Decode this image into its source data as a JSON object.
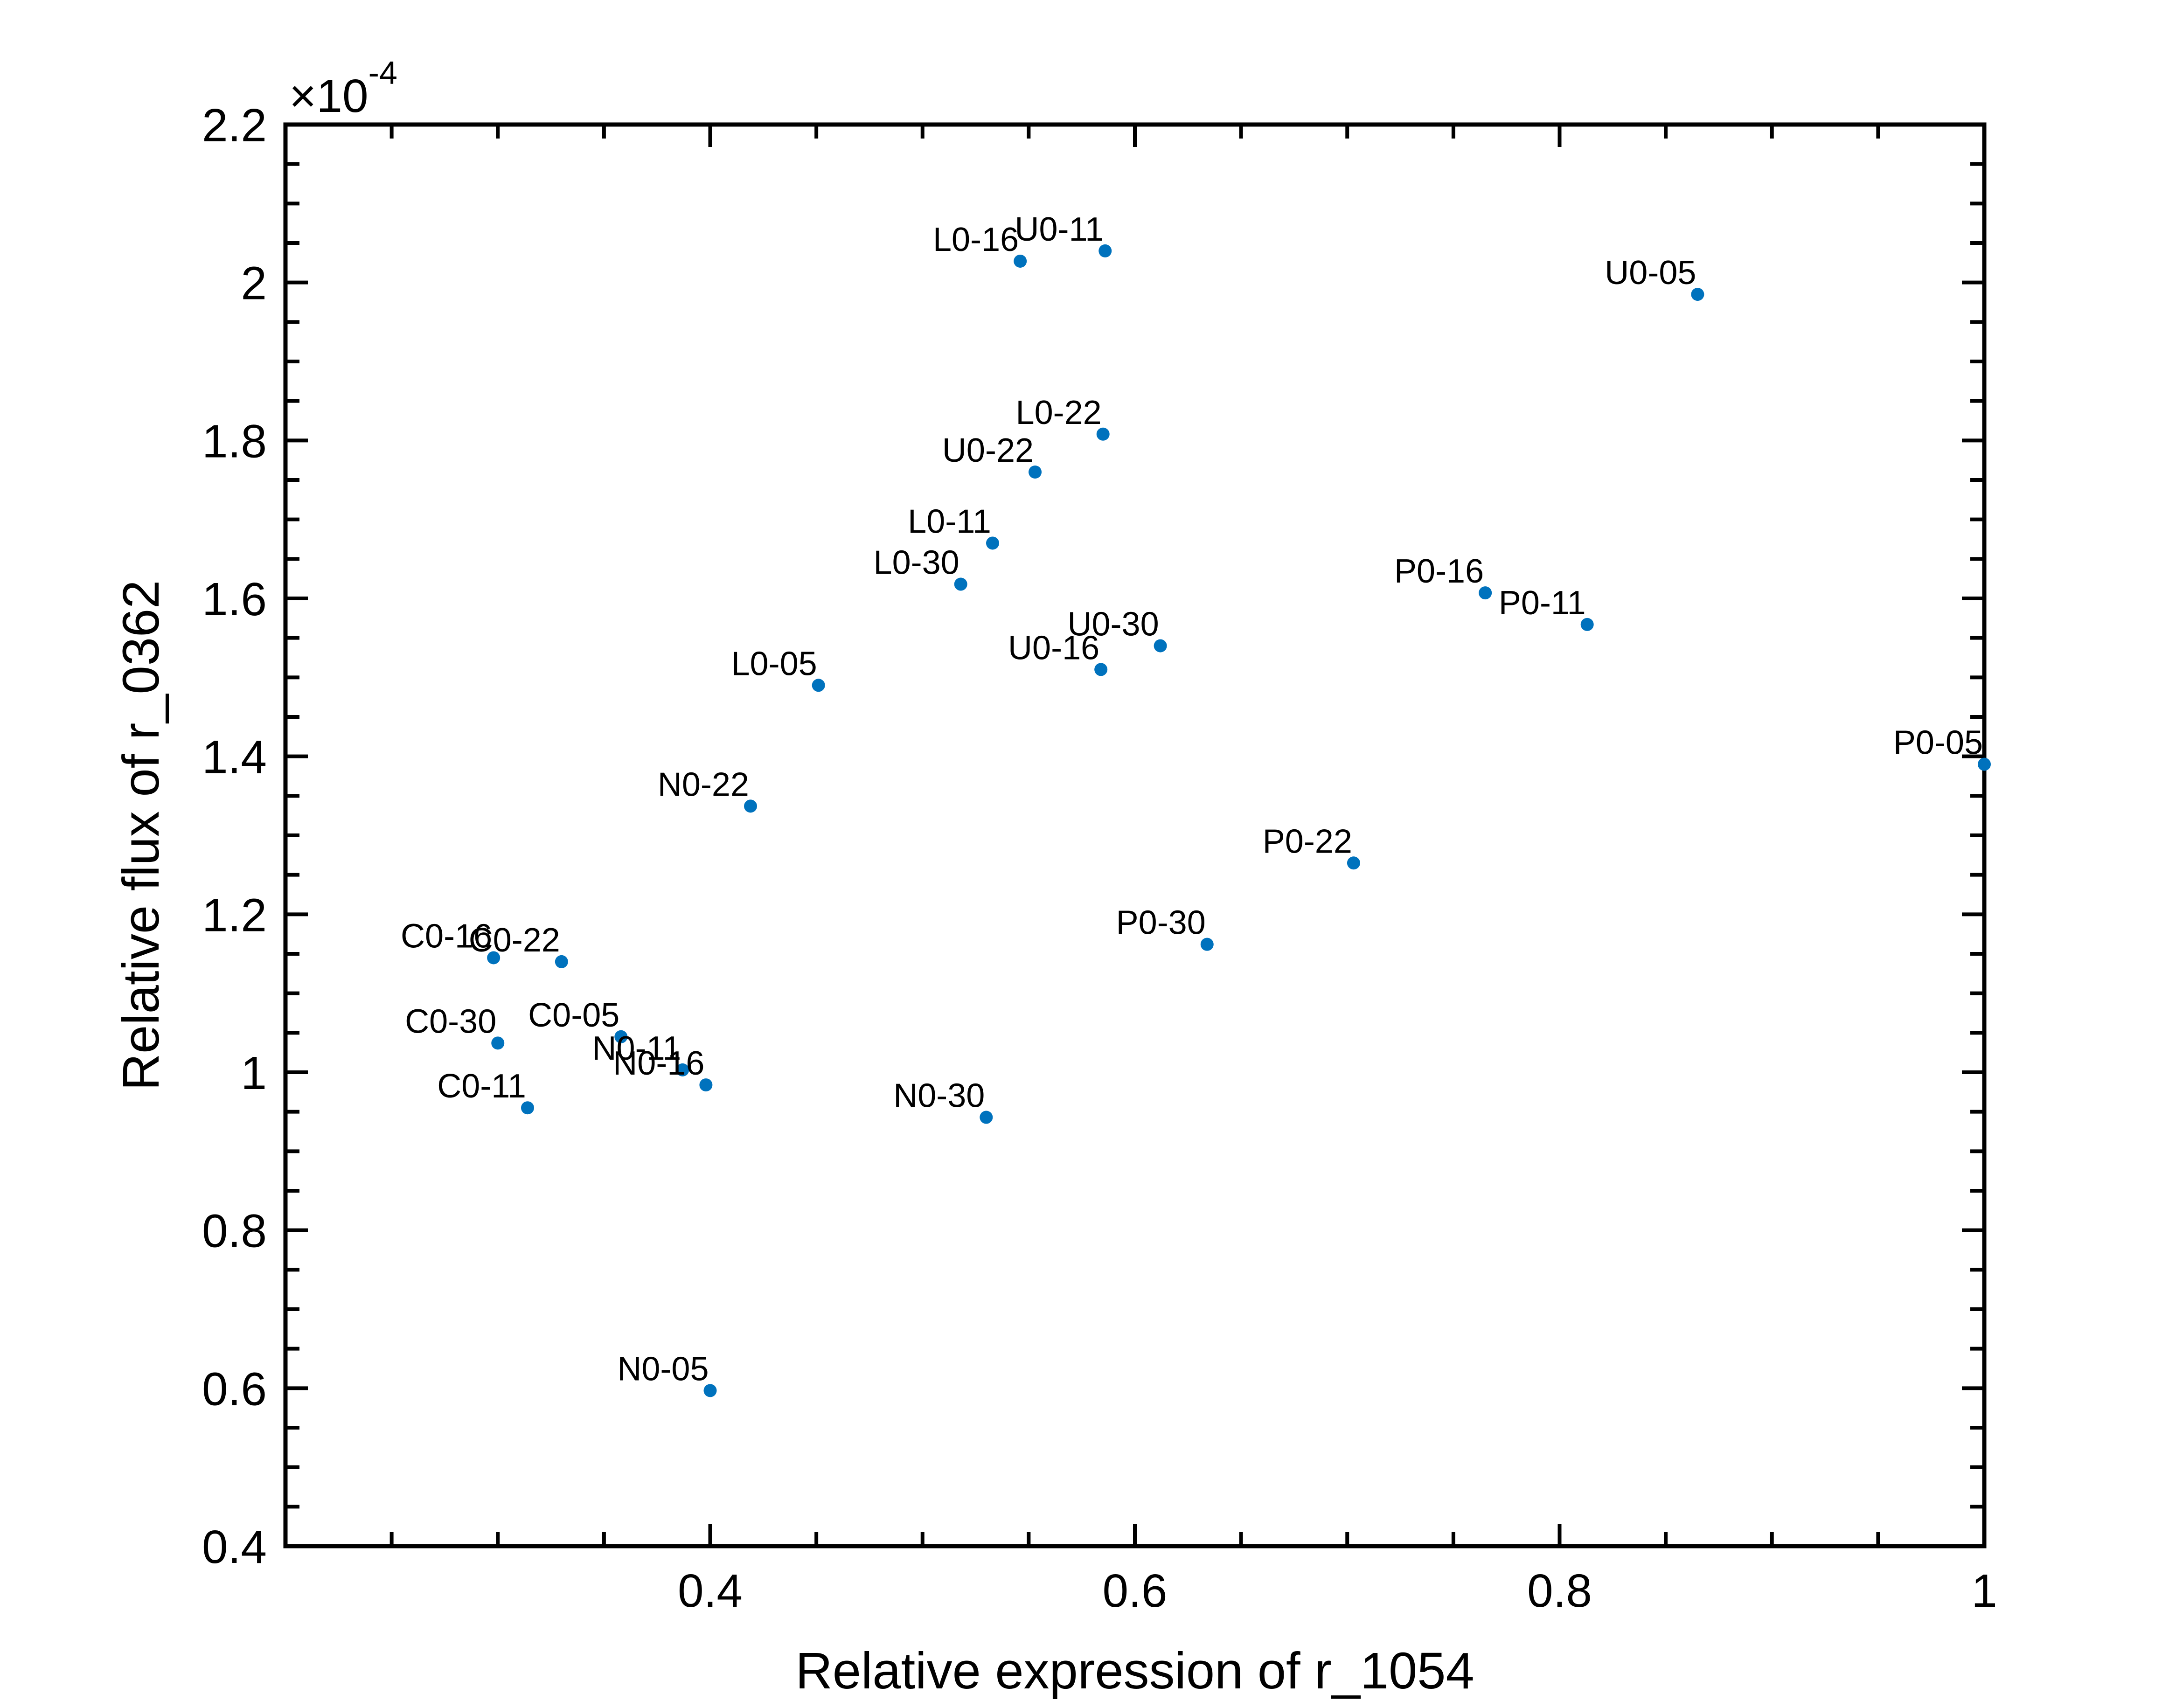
{
  "chart_data": {
    "type": "scatter",
    "title": "",
    "xlabel": "Relative expression of r_1054",
    "ylabel": "Relative flux of r_0362",
    "xlim": [
      0.2,
      1.0
    ],
    "ylim": [
      0.4,
      2.2
    ],
    "x_ticks": [
      0.4,
      0.6,
      0.8,
      1.0
    ],
    "x_tick_labels": [
      "0.4",
      "0.6",
      "0.8",
      "1"
    ],
    "y_ticks": [
      0.4,
      0.6,
      0.8,
      1.0,
      1.2,
      1.4,
      1.6,
      1.8,
      2.0,
      2.2
    ],
    "y_tick_labels": [
      "0.4",
      "0.6",
      "0.8",
      "1",
      "1.2",
      "1.4",
      "1.6",
      "1.8",
      "2",
      "2.2"
    ],
    "y_exponent_base": "×10",
    "y_exponent_power": "-4",
    "grid": false,
    "point_color": "#0072BD",
    "points": [
      {
        "label": "U0-11",
        "x": 0.586,
        "y": 2.04
      },
      {
        "label": "L0-16",
        "x": 0.546,
        "y": 2.027
      },
      {
        "label": "U0-05",
        "x": 0.865,
        "y": 1.985
      },
      {
        "label": "L0-22",
        "x": 0.585,
        "y": 1.808
      },
      {
        "label": "U0-22",
        "x": 0.553,
        "y": 1.76
      },
      {
        "label": "L0-11",
        "x": 0.533,
        "y": 1.67
      },
      {
        "label": "L0-30",
        "x": 0.518,
        "y": 1.618
      },
      {
        "label": "P0-16",
        "x": 0.765,
        "y": 1.607
      },
      {
        "label": "P0-11",
        "x": 0.813,
        "y": 1.567
      },
      {
        "label": "U0-30",
        "x": 0.612,
        "y": 1.54
      },
      {
        "label": "U0-16",
        "x": 0.584,
        "y": 1.51
      },
      {
        "label": "L0-05",
        "x": 0.451,
        "y": 1.49
      },
      {
        "label": "P0-05",
        "x": 1.0,
        "y": 1.39
      },
      {
        "label": "N0-22",
        "x": 0.419,
        "y": 1.337
      },
      {
        "label": "P0-22",
        "x": 0.703,
        "y": 1.265
      },
      {
        "label": "P0-30",
        "x": 0.634,
        "y": 1.162
      },
      {
        "label": "C0-16",
        "x": 0.298,
        "y": 1.145
      },
      {
        "label": "C0-22",
        "x": 0.33,
        "y": 1.14
      },
      {
        "label": "C0-05",
        "x": 0.358,
        "y": 1.045
      },
      {
        "label": "C0-30",
        "x": 0.3,
        "y": 1.037
      },
      {
        "label": "N0-11",
        "x": 0.387,
        "y": 1.003
      },
      {
        "label": "N0-16",
        "x": 0.398,
        "y": 0.984
      },
      {
        "label": "C0-11",
        "x": 0.314,
        "y": 0.955
      },
      {
        "label": "N0-30",
        "x": 0.53,
        "y": 0.943
      },
      {
        "label": "N0-05",
        "x": 0.4,
        "y": 0.597
      }
    ]
  }
}
